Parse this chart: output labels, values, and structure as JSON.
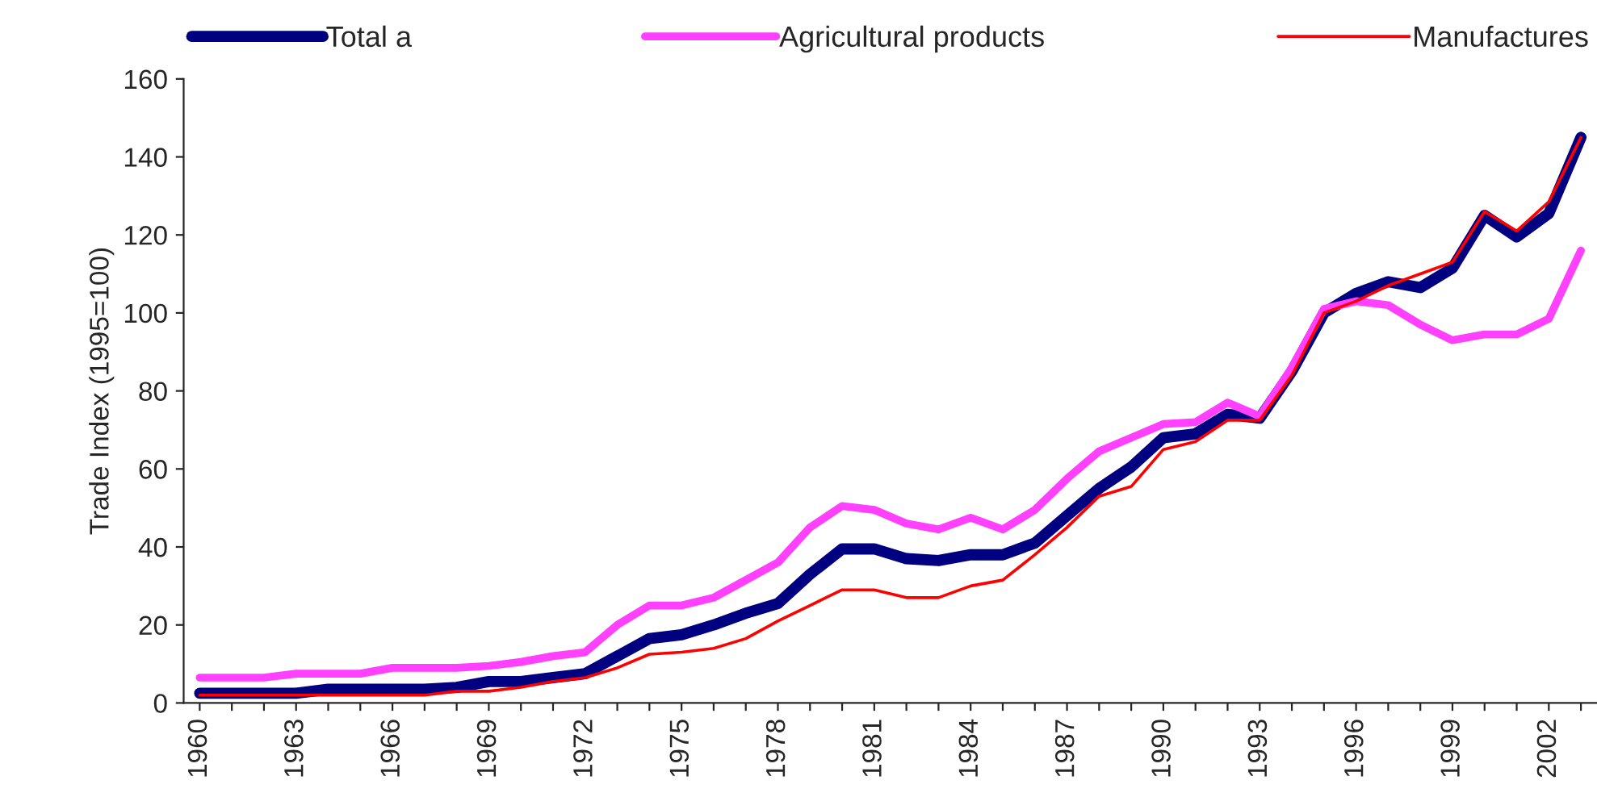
{
  "chart_data": {
    "type": "line",
    "ylabel": "Trade Index (1995=100)",
    "categories": [
      "1960",
      null,
      null,
      "1963",
      null,
      null,
      "1966",
      null,
      null,
      "1969",
      null,
      null,
      "1972",
      null,
      null,
      "1975",
      null,
      null,
      "1978",
      null,
      null,
      "1981",
      null,
      null,
      "1984",
      null,
      null,
      "1987",
      null,
      null,
      "1990",
      null,
      null,
      "1993",
      null,
      null,
      "1996",
      null,
      null,
      "1999",
      null,
      null,
      "2002",
      null
    ],
    "series": [
      {
        "name": "Total a",
        "color": "#000080",
        "values": [
          2.5,
          2.5,
          2.5,
          2.5,
          3.5,
          3.5,
          3.5,
          3.5,
          4,
          5.5,
          5.5,
          6.5,
          7.5,
          12,
          16.5,
          17.5,
          20,
          23,
          25.5,
          33,
          39.5,
          39.5,
          37,
          36.5,
          38,
          38,
          41,
          48,
          55,
          60.5,
          68,
          69,
          74,
          73,
          85,
          100,
          105,
          108,
          106.5,
          111.5,
          125,
          119.5,
          125.5,
          145
        ]
      },
      {
        "name": "Agricultural products",
        "color": "#ff40ff",
        "values": [
          6.5,
          6.5,
          6.5,
          7.5,
          7.5,
          7.5,
          9,
          9,
          9,
          9.5,
          10.5,
          12,
          13,
          20,
          25,
          25,
          27,
          31.5,
          36,
          45,
          50.5,
          49.5,
          46,
          44.5,
          47.5,
          44.5,
          49.5,
          57.5,
          64.5,
          68,
          71.5,
          72,
          77,
          73.5,
          86,
          101,
          103,
          102,
          97,
          93,
          94.5,
          94.5,
          98.5,
          116
        ]
      },
      {
        "name": "Manufactures",
        "color": "#ff0000",
        "values": [
          2,
          2,
          2,
          2,
          2,
          2,
          2,
          2,
          3,
          3,
          4,
          5.5,
          6.5,
          9,
          12.5,
          13,
          14,
          16.5,
          21,
          25,
          29,
          29,
          27,
          27,
          30,
          31.5,
          38,
          45,
          53,
          55.5,
          65,
          67,
          72.5,
          72.5,
          84,
          100,
          103,
          107,
          110,
          113,
          126,
          121,
          128.5,
          145
        ]
      }
    ],
    "ylim": [
      0,
      160
    ],
    "yticks": [
      0,
      20,
      40,
      60,
      80,
      100,
      120,
      140,
      160
    ],
    "legend": "top",
    "grid": false
  }
}
